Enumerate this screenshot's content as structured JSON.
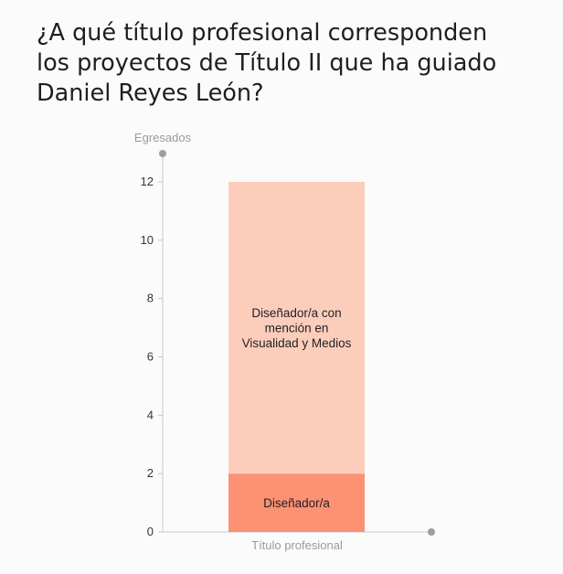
{
  "question": {
    "lines": [
      "¿A qué título profesional corresponden",
      "los proyectos de Título II que ha guiado",
      "Daniel Reyes León?"
    ]
  },
  "chart_data": {
    "type": "bar",
    "stacked": true,
    "categories": [
      ""
    ],
    "series": [
      {
        "name": "Diseñador/a",
        "values": [
          2
        ],
        "color": "#fc9173"
      },
      {
        "name": "Diseñador/a con mención en Visualidad y Medios",
        "values": [
          10
        ],
        "color": "#fdcdbc"
      }
    ],
    "segment_labels": [
      [
        "Diseñador/a"
      ],
      [
        "Diseñador/a con",
        "mención en",
        "Visualidad y Medios"
      ]
    ],
    "xlabel": "Título profesional",
    "ylabel": "Egresados",
    "yticks": [
      0,
      2,
      4,
      6,
      8,
      10,
      12
    ],
    "ylim": [
      0,
      12
    ],
    "grid": false,
    "colors": {
      "axis": "#c8c8c8",
      "axis_end": "#9e9e9e"
    }
  }
}
